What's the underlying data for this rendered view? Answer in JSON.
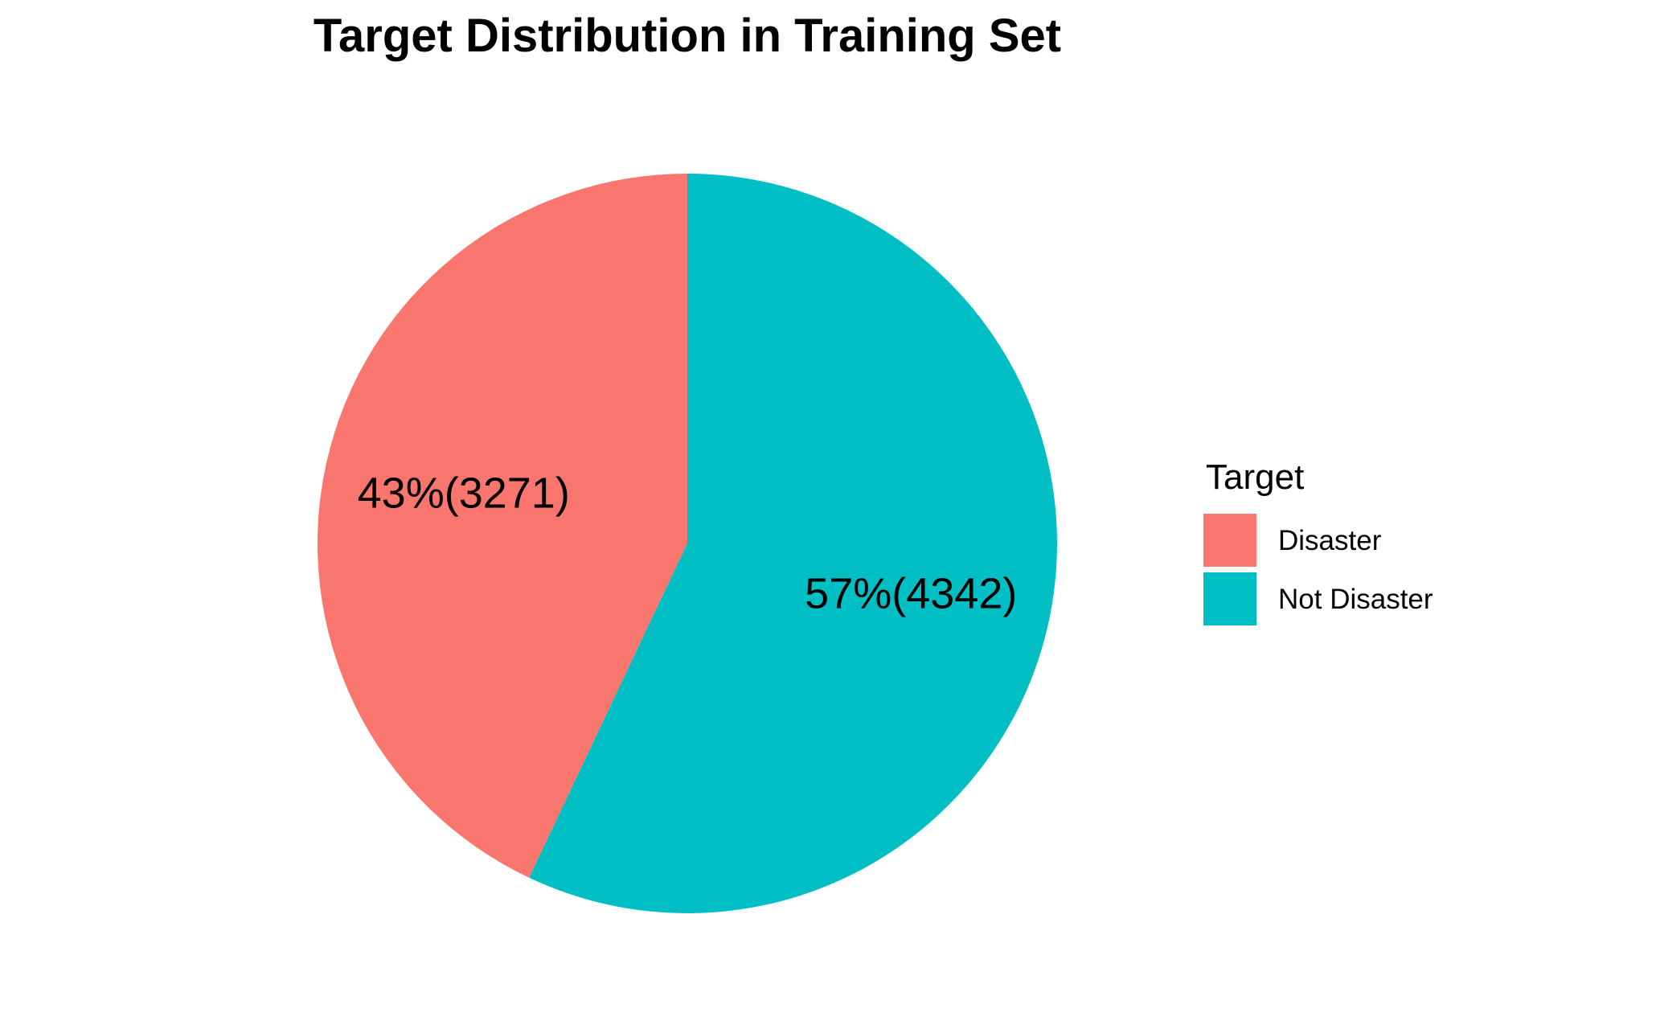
{
  "chart_data": {
    "type": "pie",
    "title": "Target Distribution in Training Set",
    "legend": {
      "title": "Target",
      "position": "right"
    },
    "start_angle_deg": 0,
    "direction": "counterclockwise",
    "slices": [
      {
        "name": "Disaster",
        "value": 3271,
        "percent": 43,
        "label": "43%(3271)",
        "color": "#F8766D"
      },
      {
        "name": "Not Disaster",
        "value": 4342,
        "percent": 57,
        "label": "57%(4342)",
        "color": "#00BFC4"
      }
    ]
  }
}
